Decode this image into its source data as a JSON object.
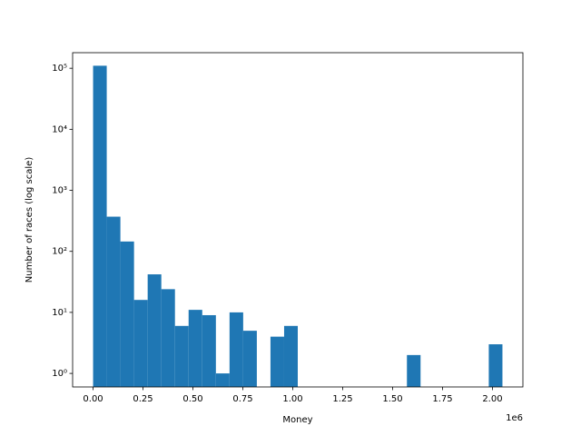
{
  "chart_data": {
    "type": "histogram",
    "x_label": "Money",
    "y_label": "Number of races (log scale)",
    "x_offset_label": "1e6",
    "bins": [
      0,
      68333,
      136667,
      205000,
      273333,
      341667,
      410000,
      478333,
      546667,
      615000,
      683333,
      751667,
      820000,
      888333,
      956667,
      1025000,
      1093333,
      1161667,
      1230000,
      1298333,
      1366667,
      1435000,
      1503333,
      1571667,
      1640000,
      1708333,
      1776667,
      1845000,
      1913333,
      1981667,
      2050000
    ],
    "values": [
      110000,
      370,
      145,
      16,
      42,
      24,
      6,
      11,
      9,
      1,
      10,
      5,
      0,
      4,
      6,
      0,
      0,
      0,
      0,
      0,
      0,
      0,
      0,
      2,
      0,
      0,
      0,
      0,
      0,
      3
    ],
    "color": "#1f77b4",
    "xlim": [
      -102500,
      2152500
    ],
    "xticks": [
      {
        "value": 0,
        "label": "0.00"
      },
      {
        "value": 250000,
        "label": "0.25"
      },
      {
        "value": 500000,
        "label": "0.50"
      },
      {
        "value": 750000,
        "label": "0.75"
      },
      {
        "value": 1000000,
        "label": "1.00"
      },
      {
        "value": 1250000,
        "label": "1.25"
      },
      {
        "value": 1500000,
        "label": "1.50"
      },
      {
        "value": 1750000,
        "label": "1.75"
      },
      {
        "value": 2000000,
        "label": "2.00"
      }
    ],
    "ylim": [
      0.6,
      180000
    ],
    "yticks": [
      {
        "value": 1,
        "label": "10⁰"
      },
      {
        "value": 10,
        "label": "10¹"
      },
      {
        "value": 100,
        "label": "10²"
      },
      {
        "value": 1000,
        "label": "10³"
      },
      {
        "value": 10000,
        "label": "10⁴"
      },
      {
        "value": 100000,
        "label": "10⁵"
      }
    ],
    "y_scale": "log"
  }
}
